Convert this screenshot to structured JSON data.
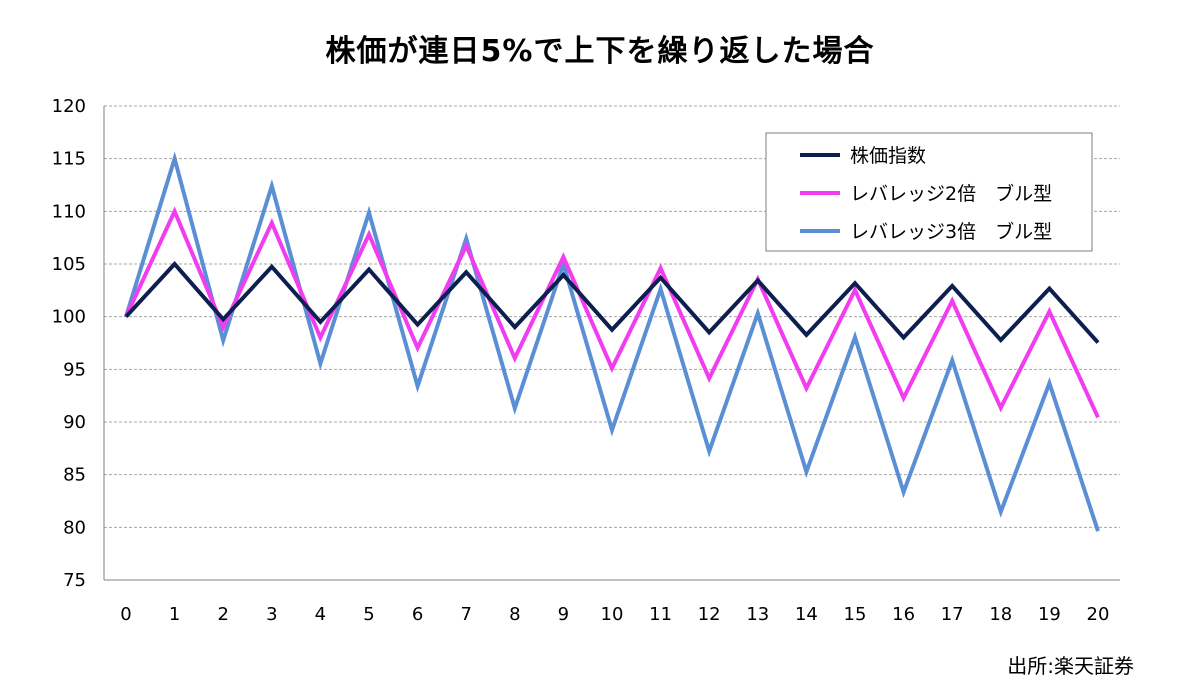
{
  "chart_data": {
    "type": "line",
    "title": "株価が連日5%で上下を繰り返した場合",
    "xlabel": "",
    "ylabel": "",
    "x": [
      0,
      1,
      2,
      3,
      4,
      5,
      6,
      7,
      8,
      9,
      10,
      11,
      12,
      13,
      14,
      15,
      16,
      17,
      18,
      19,
      20
    ],
    "ylim": [
      75,
      120
    ],
    "yticks": [
      75,
      80,
      85,
      90,
      95,
      100,
      105,
      110,
      115,
      120
    ],
    "grid": "horizontal-dashed",
    "legend_position": "top-right",
    "series": [
      {
        "name": "株価指数",
        "color": "#0d1f4f",
        "values": [
          100,
          105,
          99.75,
          104.74,
          99.5,
          104.48,
          99.25,
          104.22,
          99.01,
          103.96,
          98.76,
          103.7,
          98.51,
          103.44,
          98.27,
          103.18,
          98.02,
          102.92,
          97.78,
          102.67,
          97.54
        ]
      },
      {
        "name": "レバレッジ2倍　ブル型",
        "color": "#f23cf0",
        "values": [
          100,
          110,
          99,
          108.9,
          98.01,
          107.81,
          97.03,
          106.73,
          96.06,
          105.67,
          95.1,
          104.61,
          94.15,
          103.56,
          93.21,
          102.53,
          92.28,
          101.5,
          91.35,
          100.49,
          90.44
        ]
      },
      {
        "name": "レバレッジ3倍　ブル型",
        "color": "#5a8fd6",
        "values": [
          100,
          115,
          97.75,
          112.41,
          95.55,
          109.88,
          93.4,
          107.41,
          91.3,
          104.99,
          89.24,
          102.63,
          87.23,
          100.32,
          85.27,
          98.06,
          83.35,
          95.85,
          81.47,
          93.69,
          79.64
        ]
      }
    ],
    "source_note": "出所:楽天証券"
  }
}
